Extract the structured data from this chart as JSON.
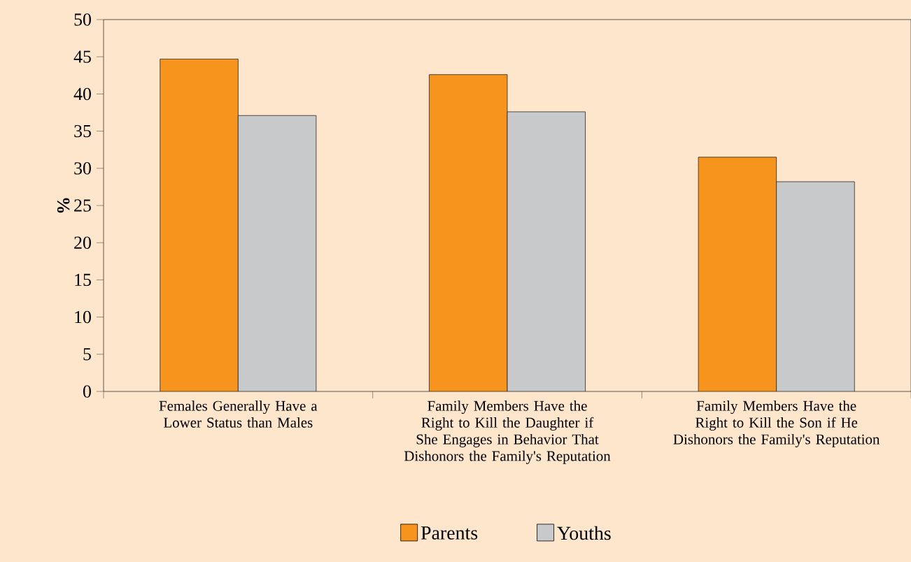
{
  "chart_data": {
    "type": "bar",
    "ylabel": "%",
    "categories": [
      "Females Generally Have a Lower Status than Males",
      "Family Members Have the Right to Kill the Daughter if She Engages in Behavior That Dishonors the Family's Reputation",
      "Family Members Have the Right to Kill the Son if He Dishonors the Family's Reputation"
    ],
    "series": [
      {
        "name": "Parents",
        "color": "#f7941d",
        "values": [
          44.7,
          42.6,
          31.5
        ]
      },
      {
        "name": "Youths",
        "color": "#c8c9cb",
        "values": [
          37.1,
          37.6,
          28.2
        ]
      }
    ],
    "ylim": [
      0,
      50
    ],
    "yticks": [
      0,
      5,
      10,
      15,
      20,
      25,
      30,
      35,
      40,
      45,
      50
    ],
    "grid": false,
    "legend": "bottom"
  }
}
